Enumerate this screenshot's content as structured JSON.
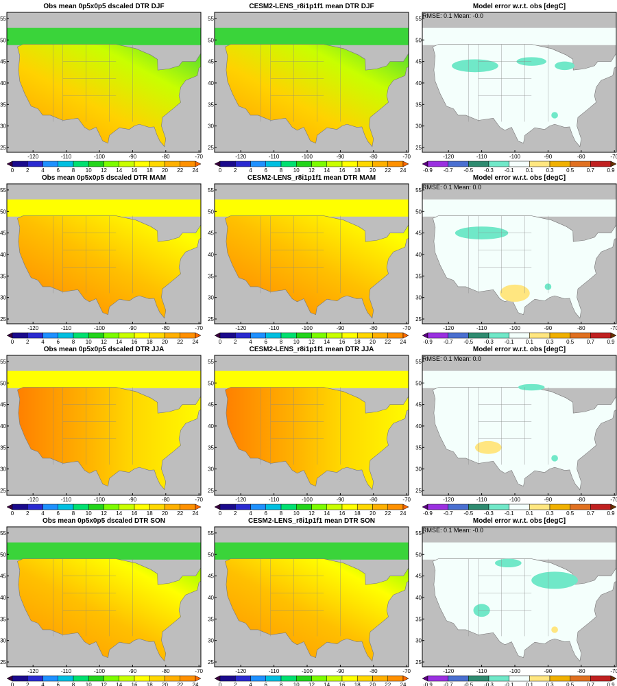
{
  "panels": [
    {
      "title": "Obs mean 0p5x0p5 dscaled DTR DJF"
    },
    {
      "title": "CESM2-LENS_r8i1p1f1 mean DTR DJF"
    },
    {
      "title": "Model error w.r.t. obs [degC]",
      "annotation": "RMSE: 0.1  Mean: -0.0"
    },
    {
      "title": "Obs mean 0p5x0p5 dscaled DTR MAM"
    },
    {
      "title": "CESM2-LENS_r8i1p1f1 mean DTR MAM"
    },
    {
      "title": "Model error w.r.t. obs [degC]",
      "annotation": "RMSE: 0.1  Mean: 0.0"
    },
    {
      "title": "Obs mean 0p5x0p5 dscaled DTR JJA"
    },
    {
      "title": "CESM2-LENS_r8i1p1f1 mean DTR JJA"
    },
    {
      "title": "Model error w.r.t. obs [degC]",
      "annotation": "RMSE: 0.1  Mean: 0.0"
    },
    {
      "title": "Obs mean 0p5x0p5 dscaled DTR SON"
    },
    {
      "title": "CESM2-LENS_r8i1p1f1 mean DTR SON"
    },
    {
      "title": "Model error w.r.t. obs [degC]",
      "annotation": "RMSE: 0.1  Mean: -0.0"
    }
  ],
  "lat_ticks": [
    25,
    30,
    35,
    40,
    45,
    50,
    55
  ],
  "lon_ticks": [
    -120,
    -110,
    -100,
    -90,
    -80,
    -70
  ],
  "dtr_colorbar": {
    "ticks": [
      0,
      2,
      4,
      6,
      8,
      10,
      12,
      14,
      16,
      18,
      20,
      22,
      24
    ],
    "colors": [
      "#3a0040",
      "#1a0a8c",
      "#2a2ad0",
      "#1e90ff",
      "#00bfe0",
      "#00e070",
      "#22d41a",
      "#7cfc00",
      "#c8ff00",
      "#ffff00",
      "#ffd700",
      "#ffb000",
      "#ff9000",
      "#ff6a00"
    ]
  },
  "error_colorbar": {
    "ticks": [
      -0.9,
      -0.7,
      -0.5,
      -0.3,
      -0.1,
      0.1,
      0.3,
      0.5,
      0.7,
      0.9
    ],
    "colors": [
      "#5a0080",
      "#9a30e0",
      "#4a6fd0",
      "#2e8b70",
      "#70e8c8",
      "#f4fffc",
      "#ffe680",
      "#f0b000",
      "#e07020",
      "#c02020",
      "#6b3000"
    ]
  }
}
